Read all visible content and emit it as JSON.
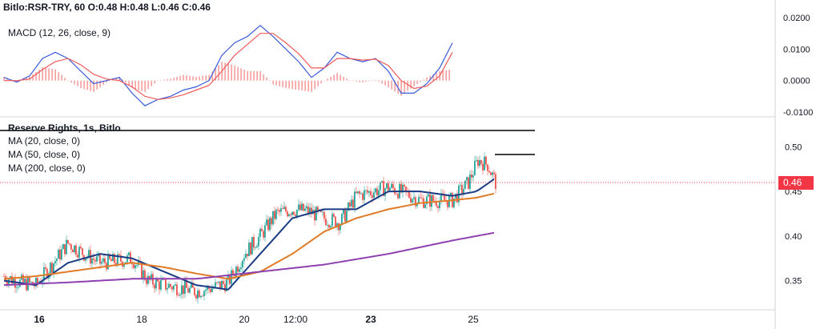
{
  "header": {
    "symbol": "Bitlo:RSR-TRY, 60",
    "ohlc": "O:0.48 H:0.48 L:0.46 C:0.46"
  },
  "macd_pane": {
    "label": "MACD (12, 26, close, 9)"
  },
  "price_pane": {
    "title": "Reserve Rights, 1s, Bitlo",
    "ma_labels": [
      "MA (20, close, 0)",
      "MA (50, close, 0)",
      "MA (200, close, 0)"
    ],
    "last_price": "0.46"
  },
  "colors": {
    "up": "#26a69a",
    "down": "#ef5350",
    "ma20": "#1a3c84",
    "ma50": "#e07b27",
    "ma200": "#8e3fb0",
    "macd": "#3b5bdb",
    "signal": "#f05a5a",
    "last_price": "#f23645"
  },
  "chart_data": [
    {
      "type": "line",
      "name": "MACD",
      "ylim": [
        -0.01,
        0.02
      ],
      "yticks": [
        "0.0200",
        "0.0100",
        "0.0000",
        "-0.0100"
      ],
      "ytick_values": [
        0.02,
        0.01,
        0.0,
        -0.01
      ],
      "x": [
        0,
        8,
        16,
        24,
        32,
        40,
        48,
        56,
        64,
        72,
        80,
        88,
        96,
        104,
        112,
        120,
        128,
        136,
        144,
        152,
        160,
        168,
        176,
        184,
        192,
        200,
        208,
        216,
        224,
        232,
        240,
        248,
        256,
        264,
        272,
        280
      ],
      "series": [
        {
          "role": "macd",
          "values": [
            0.001,
            -0.0005,
            0.0015,
            0.007,
            0.009,
            0.007,
            0.003,
            -0.001,
            0.0,
            0.001,
            -0.004,
            -0.008,
            -0.006,
            -0.005,
            -0.003,
            -0.002,
            0.0,
            0.008,
            0.012,
            0.014,
            0.0175,
            0.014,
            0.01,
            0.006,
            0.001,
            0.004,
            0.009,
            0.007,
            0.006,
            0.007,
            0.003,
            -0.004,
            -0.004,
            -0.001,
            0.004,
            0.012
          ]
        },
        {
          "role": "signal",
          "values": [
            0.0,
            0.0,
            0.0005,
            0.0035,
            0.006,
            0.007,
            0.005,
            0.002,
            0.0005,
            0.0,
            -0.002,
            -0.005,
            -0.006,
            -0.0055,
            -0.0045,
            -0.003,
            -0.0015,
            0.003,
            0.008,
            0.0115,
            0.015,
            0.015,
            0.012,
            0.0085,
            0.004,
            0.004,
            0.007,
            0.007,
            0.0065,
            0.0068,
            0.0048,
            0.0,
            -0.0025,
            -0.0018,
            0.0015,
            0.009
          ]
        }
      ]
    },
    {
      "type": "line",
      "name": "Price",
      "ylim": [
        0.32,
        0.53
      ],
      "yticks": [
        "0.50",
        "0.45",
        "0.40",
        "0.35"
      ],
      "ytick_values": [
        0.5,
        0.45,
        0.4,
        0.35
      ],
      "xticks": [
        {
          "label": "16",
          "bar": 22,
          "bold": true
        },
        {
          "label": "18",
          "bar": 86,
          "bold": false
        },
        {
          "label": "20",
          "bar": 150,
          "bold": false
        },
        {
          "label": "12:00",
          "bar": 182,
          "bold": false
        },
        {
          "label": "23",
          "bar": 229,
          "bold": true
        },
        {
          "label": "25",
          "bar": 293,
          "bold": false
        }
      ],
      "close_points": [
        [
          0,
          0.355
        ],
        [
          10,
          0.348
        ],
        [
          20,
          0.345
        ],
        [
          30,
          0.368
        ],
        [
          40,
          0.392
        ],
        [
          50,
          0.38
        ],
        [
          60,
          0.37
        ],
        [
          70,
          0.372
        ],
        [
          80,
          0.375
        ],
        [
          90,
          0.35
        ],
        [
          100,
          0.345
        ],
        [
          110,
          0.342
        ],
        [
          120,
          0.338
        ],
        [
          130,
          0.342
        ],
        [
          140,
          0.348
        ],
        [
          150,
          0.38
        ],
        [
          160,
          0.4
        ],
        [
          170,
          0.425
        ],
        [
          180,
          0.43
        ],
        [
          190,
          0.428
        ],
        [
          200,
          0.42
        ],
        [
          210,
          0.415
        ],
        [
          220,
          0.445
        ],
        [
          230,
          0.45
        ],
        [
          240,
          0.455
        ],
        [
          250,
          0.448
        ],
        [
          260,
          0.44
        ],
        [
          270,
          0.44
        ],
        [
          280,
          0.44
        ],
        [
          290,
          0.46
        ],
        [
          296,
          0.485
        ],
        [
          302,
          0.48
        ],
        [
          307,
          0.46
        ]
      ],
      "ma_series": [
        {
          "role": "ma20",
          "values": [
            [
              0,
              0.35
            ],
            [
              20,
              0.345
            ],
            [
              40,
              0.37
            ],
            [
              60,
              0.38
            ],
            [
              80,
              0.375
            ],
            [
              100,
              0.36
            ],
            [
              120,
              0.345
            ],
            [
              140,
              0.34
            ],
            [
              160,
              0.38
            ],
            [
              180,
              0.42
            ],
            [
              200,
              0.43
            ],
            [
              220,
              0.43
            ],
            [
              240,
              0.45
            ],
            [
              260,
              0.45
            ],
            [
              280,
              0.445
            ],
            [
              295,
              0.45
            ],
            [
              307,
              0.465
            ]
          ]
        },
        {
          "role": "ma50",
          "values": [
            [
              0,
              0.352
            ],
            [
              20,
              0.355
            ],
            [
              40,
              0.36
            ],
            [
              60,
              0.365
            ],
            [
              80,
              0.37
            ],
            [
              100,
              0.365
            ],
            [
              120,
              0.358
            ],
            [
              140,
              0.352
            ],
            [
              160,
              0.36
            ],
            [
              180,
              0.38
            ],
            [
              200,
              0.405
            ],
            [
              220,
              0.42
            ],
            [
              240,
              0.43
            ],
            [
              260,
              0.437
            ],
            [
              280,
              0.44
            ],
            [
              295,
              0.443
            ],
            [
              307,
              0.448
            ]
          ]
        },
        {
          "role": "ma200",
          "values": [
            [
              0,
              0.345
            ],
            [
              40,
              0.348
            ],
            [
              80,
              0.352
            ],
            [
              120,
              0.352
            ],
            [
              160,
              0.36
            ],
            [
              200,
              0.368
            ],
            [
              240,
              0.38
            ],
            [
              280,
              0.395
            ],
            [
              307,
              0.404
            ]
          ]
        }
      ]
    }
  ]
}
